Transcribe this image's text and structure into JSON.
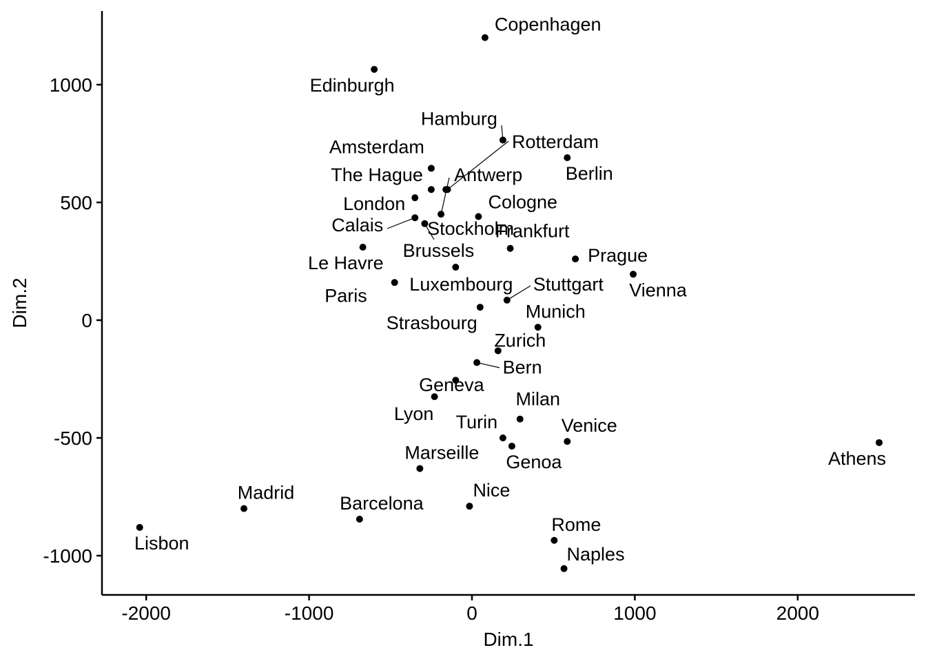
{
  "chart_data": {
    "type": "scatter",
    "title": "",
    "xlabel": "Dim.1",
    "ylabel": "Dim.2",
    "xlim": [
      -2260,
      2700
    ],
    "ylim": [
      -1170,
      1310
    ],
    "x_ticks": [
      -2000,
      -1000,
      0,
      1000,
      2000
    ],
    "y_ticks": [
      -1000,
      -500,
      0,
      500,
      1000
    ],
    "x_tick_labels": [
      "-2000",
      "-1000",
      "0",
      "1000",
      "2000"
    ],
    "y_tick_labels": [
      "-1000",
      "-500",
      "0",
      "500",
      "1000"
    ],
    "grid": false,
    "legend": "none",
    "points": [
      {
        "label": "Athens",
        "x": 2500,
        "y": -520
      },
      {
        "label": "Barcelona",
        "x": -690,
        "y": -845
      },
      {
        "label": "Berlin",
        "x": 585,
        "y": 690
      },
      {
        "label": "Bern",
        "x": 30,
        "y": -180
      },
      {
        "label": "Brussels",
        "x": -290,
        "y": 410
      },
      {
        "label": "Calais",
        "x": -350,
        "y": 435
      },
      {
        "label": "Cologne",
        "x": 40,
        "y": 440
      },
      {
        "label": "Copenhagen",
        "x": 80,
        "y": 1200
      },
      {
        "label": "Edinburgh",
        "x": -600,
        "y": 1065
      },
      {
        "label": "Geneva",
        "x": -100,
        "y": -255
      },
      {
        "label": "Genoa",
        "x": 245,
        "y": -535
      },
      {
        "label": "Hamburg",
        "x": 190,
        "y": 765
      },
      {
        "label": "Le Havre",
        "x": -670,
        "y": 310
      },
      {
        "label": "Lisbon",
        "x": -2040,
        "y": -880
      },
      {
        "label": "London",
        "x": -350,
        "y": 520
      },
      {
        "label": "Lyon",
        "x": -230,
        "y": -325
      },
      {
        "label": "Madrid",
        "x": -1400,
        "y": -800
      },
      {
        "label": "Marseille",
        "x": -320,
        "y": -630
      },
      {
        "label": "Milan",
        "x": 295,
        "y": -420
      },
      {
        "label": "Munich",
        "x": 405,
        "y": -30
      },
      {
        "label": "Naples",
        "x": 565,
        "y": -1055
      },
      {
        "label": "Nice",
        "x": -15,
        "y": -790
      },
      {
        "label": "Paris",
        "x": -475,
        "y": 160
      },
      {
        "label": "Rome",
        "x": 505,
        "y": -935
      },
      {
        "label": "Stockholm",
        "x": -190,
        "y": 450
      },
      {
        "label": "Strasbourg",
        "x": 50,
        "y": 55
      },
      {
        "label": "Vienna",
        "x": 990,
        "y": 195
      },
      {
        "label": "Zurich",
        "x": 160,
        "y": -130
      },
      {
        "label": "Amsterdam",
        "x": -250,
        "y": 645
      },
      {
        "label": "Antwerp",
        "x": -160,
        "y": 555
      },
      {
        "label": "The Hague",
        "x": -250,
        "y": 555
      },
      {
        "label": "Rotterdam",
        "x": -150,
        "y": 555
      },
      {
        "label": "Frankfurt",
        "x": 235,
        "y": 305
      },
      {
        "label": "Luxembourg",
        "x": -100,
        "y": 225
      },
      {
        "label": "Prague",
        "x": 635,
        "y": 260
      },
      {
        "label": "Stuttgart",
        "x": 215,
        "y": 85
      },
      {
        "label": "Turin",
        "x": 190,
        "y": -500
      },
      {
        "label": "Venice",
        "x": 585,
        "y": -515
      }
    ]
  }
}
